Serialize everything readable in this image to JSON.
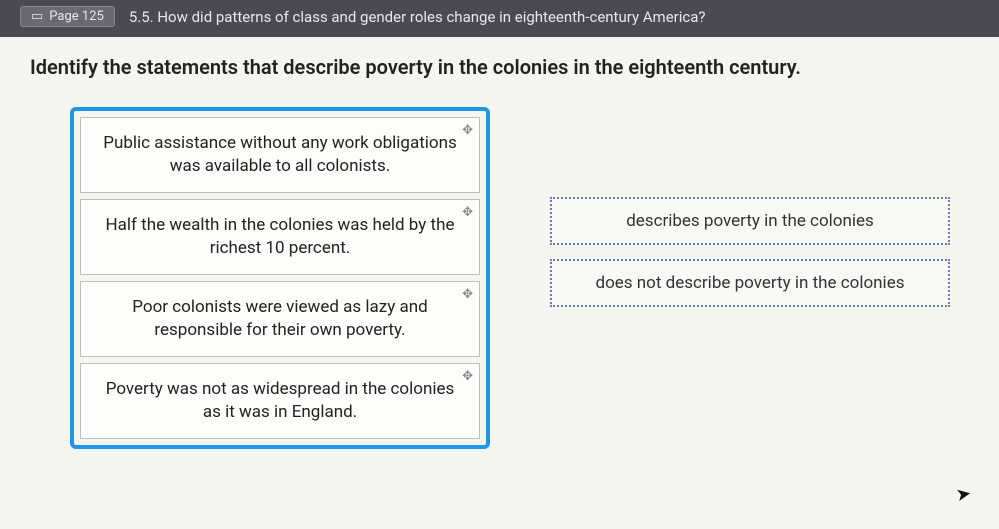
{
  "topbar": {
    "page_label": "Page 125",
    "section_text": "5.5. How did patterns of class and gender roles change in eighteenth-century America?"
  },
  "prompt": "Identify the statements that describe poverty in the colonies in the eighteenth century.",
  "draggables": [
    "Public assistance without any work obligations was available to all colonists.",
    "Half the wealth in the colonies was held by the richest 10 percent.",
    "Poor colonists were viewed as lazy and responsible for their own poverty.",
    "Poverty was not as widespread in the colonies as it was in England."
  ],
  "dropzones": [
    "describes poverty in the colonies",
    "does not describe poverty in the colonies"
  ]
}
